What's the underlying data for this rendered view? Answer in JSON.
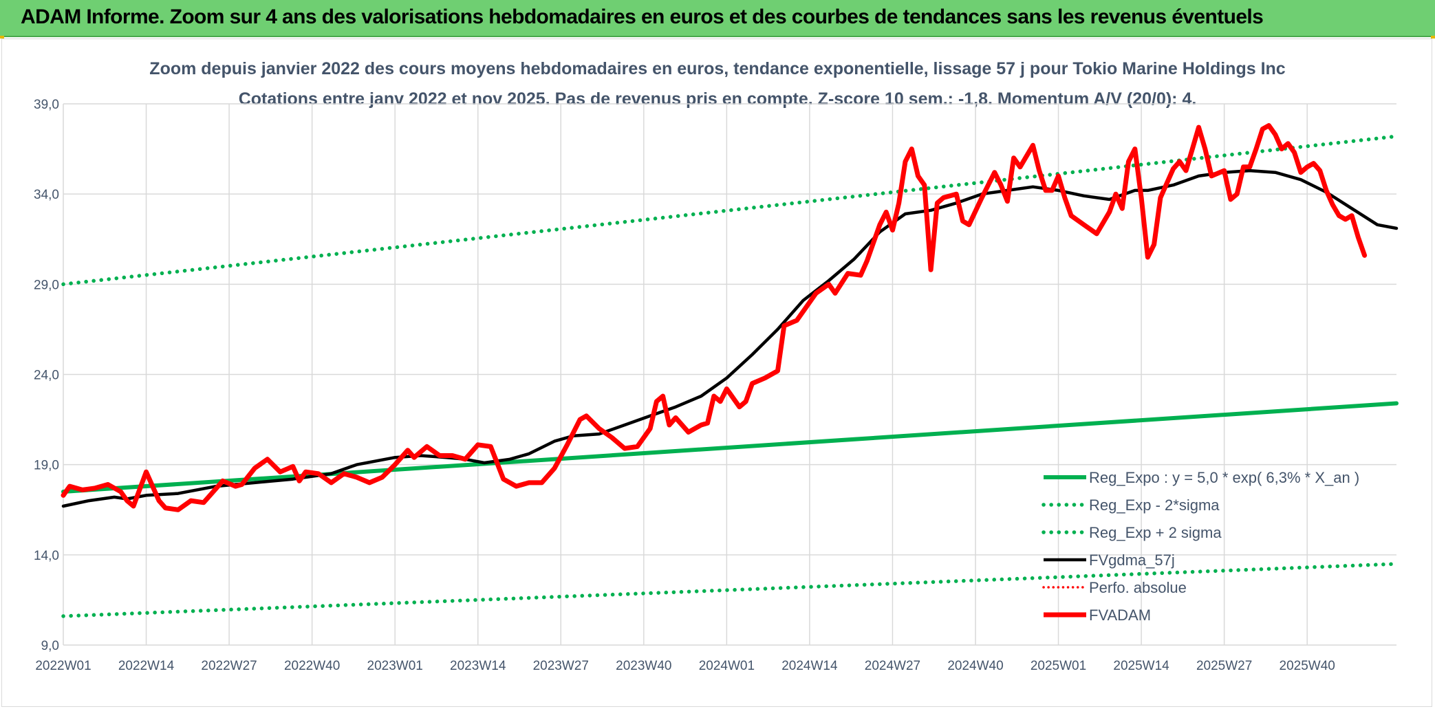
{
  "header": {
    "title": "ADAM Informe. Zoom sur 4 ans des valorisations hebdomadaires en euros et des courbes de tendances sans les revenus éventuels"
  },
  "colors": {
    "banner": "#6fcf72",
    "regression": "#00b050",
    "smoothing": "#000000",
    "price": "#ff0000",
    "perfo": "#ff0000",
    "grid": "#d9d9d9",
    "axis_text": "#44546a"
  },
  "chart_data": {
    "type": "line",
    "title": "Zoom depuis janvier 2022 des cours moyens hebdomadaires en euros, tendance exponentielle, lissage 57 j pour Tokio Marine Holdings Inc",
    "subtitle": "Cotations entre janv 2022 et nov 2025. Pas de revenus pris en compte. Z-score 10 sem.: -1,8. Momentum A/V (20/0): 4.",
    "xlabel": "",
    "ylabel": "",
    "ylim": [
      9,
      39
    ],
    "yticks": [
      "9,0",
      "14,0",
      "19,0",
      "24,0",
      "29,0",
      "34,0",
      "39,0"
    ],
    "ytick_values": [
      9,
      14,
      19,
      24,
      29,
      34,
      39
    ],
    "x_tick_labels": [
      "2022W01",
      "2022W14",
      "2022W27",
      "2022W40",
      "2023W01",
      "2023W14",
      "2023W27",
      "2023W40",
      "2024W01",
      "2024W14",
      "2024W27",
      "2024W40",
      "2025W01",
      "2025W14",
      "2025W27",
      "2025W40"
    ],
    "x_tick_weeks": [
      0,
      13,
      26,
      39,
      52,
      65,
      78,
      91,
      104,
      117,
      130,
      143,
      156,
      169,
      182,
      195
    ],
    "x_total_weeks": 209,
    "grid": true,
    "legend_position": "bottom-right",
    "series": [
      {
        "name": "Reg_Expo : y = 5,0 * exp( 6,3% *  X_an )",
        "style": "solid",
        "color": "#00b050",
        "points": [
          [
            0,
            17.5
          ],
          [
            209,
            22.4
          ]
        ]
      },
      {
        "name": "Reg_Exp - 2*sigma",
        "style": "dotted",
        "color": "#00b050",
        "points": [
          [
            0,
            10.6
          ],
          [
            209,
            13.5
          ]
        ]
      },
      {
        "name": "Reg_Exp + 2 sigma",
        "style": "dotted",
        "color": "#00b050",
        "points": [
          [
            0,
            29.0
          ],
          [
            209,
            37.2
          ]
        ]
      },
      {
        "name": "FVgdma_57j",
        "style": "solid",
        "color": "#000000",
        "points": [
          [
            0,
            16.7
          ],
          [
            4,
            17.0
          ],
          [
            8,
            17.2
          ],
          [
            10,
            17.1
          ],
          [
            13,
            17.3
          ],
          [
            18,
            17.4
          ],
          [
            24,
            17.8
          ],
          [
            30,
            18.0
          ],
          [
            36,
            18.2
          ],
          [
            42,
            18.5
          ],
          [
            46,
            19.0
          ],
          [
            52,
            19.4
          ],
          [
            56,
            19.5
          ],
          [
            60,
            19.4
          ],
          [
            63,
            19.3
          ],
          [
            66,
            19.1
          ],
          [
            70,
            19.3
          ],
          [
            73,
            19.6
          ],
          [
            77,
            20.3
          ],
          [
            80,
            20.6
          ],
          [
            84,
            20.7
          ],
          [
            88,
            21.2
          ],
          [
            92,
            21.7
          ],
          [
            96,
            22.2
          ],
          [
            100,
            22.8
          ],
          [
            104,
            23.8
          ],
          [
            108,
            25.1
          ],
          [
            112,
            26.5
          ],
          [
            116,
            28.1
          ],
          [
            120,
            29.2
          ],
          [
            124,
            30.4
          ],
          [
            128,
            31.9
          ],
          [
            132,
            32.9
          ],
          [
            136,
            33.1
          ],
          [
            140,
            33.5
          ],
          [
            144,
            34.0
          ],
          [
            148,
            34.2
          ],
          [
            152,
            34.4
          ],
          [
            156,
            34.2
          ],
          [
            160,
            33.9
          ],
          [
            164,
            33.7
          ],
          [
            168,
            34.2
          ],
          [
            170,
            34.2
          ],
          [
            174,
            34.5
          ],
          [
            178,
            35.0
          ],
          [
            182,
            35.2
          ],
          [
            186,
            35.3
          ],
          [
            190,
            35.2
          ],
          [
            194,
            34.8
          ],
          [
            198,
            34.1
          ],
          [
            202,
            33.2
          ],
          [
            206,
            32.3
          ],
          [
            209,
            32.1
          ]
        ]
      },
      {
        "name": "Perfo. absolue",
        "style": "dotted",
        "color": "#ff0000",
        "points": []
      },
      {
        "name": "FVADAM",
        "style": "solid",
        "color": "#ff0000",
        "points": [
          [
            0,
            17.3
          ],
          [
            1,
            17.8
          ],
          [
            3,
            17.6
          ],
          [
            5,
            17.7
          ],
          [
            7,
            17.9
          ],
          [
            9,
            17.5
          ],
          [
            10,
            17.0
          ],
          [
            11,
            16.7
          ],
          [
            13,
            18.6
          ],
          [
            15,
            17.0
          ],
          [
            16,
            16.6
          ],
          [
            18,
            16.5
          ],
          [
            20,
            17.0
          ],
          [
            22,
            16.9
          ],
          [
            23,
            17.3
          ],
          [
            25,
            18.1
          ],
          [
            27,
            17.8
          ],
          [
            28,
            17.9
          ],
          [
            30,
            18.8
          ],
          [
            32,
            19.3
          ],
          [
            34,
            18.6
          ],
          [
            36,
            18.9
          ],
          [
            37,
            18.1
          ],
          [
            38,
            18.6
          ],
          [
            40,
            18.5
          ],
          [
            42,
            18.0
          ],
          [
            44,
            18.5
          ],
          [
            46,
            18.3
          ],
          [
            48,
            18.0
          ],
          [
            50,
            18.3
          ],
          [
            52,
            19.0
          ],
          [
            54,
            19.8
          ],
          [
            55,
            19.4
          ],
          [
            57,
            20.0
          ],
          [
            59,
            19.5
          ],
          [
            61,
            19.5
          ],
          [
            63,
            19.3
          ],
          [
            65,
            20.1
          ],
          [
            67,
            20.0
          ],
          [
            69,
            18.2
          ],
          [
            71,
            17.8
          ],
          [
            73,
            18.0
          ],
          [
            75,
            18.0
          ],
          [
            77,
            18.8
          ],
          [
            79,
            20.1
          ],
          [
            81,
            21.5
          ],
          [
            82,
            21.7
          ],
          [
            84,
            21.0
          ],
          [
            86,
            20.5
          ],
          [
            88,
            19.9
          ],
          [
            90,
            20.0
          ],
          [
            92,
            21.0
          ],
          [
            93,
            22.5
          ],
          [
            94,
            22.8
          ],
          [
            95,
            21.2
          ],
          [
            96,
            21.6
          ],
          [
            98,
            20.8
          ],
          [
            100,
            21.2
          ],
          [
            101,
            21.3
          ],
          [
            102,
            22.8
          ],
          [
            103,
            22.5
          ],
          [
            104,
            23.2
          ],
          [
            106,
            22.2
          ],
          [
            107,
            22.5
          ],
          [
            108,
            23.5
          ],
          [
            110,
            23.8
          ],
          [
            112,
            24.2
          ],
          [
            113,
            26.7
          ],
          [
            115,
            27.0
          ],
          [
            116,
            27.5
          ],
          [
            118,
            28.5
          ],
          [
            120,
            29.0
          ],
          [
            121,
            28.5
          ],
          [
            123,
            29.6
          ],
          [
            125,
            29.5
          ],
          [
            126,
            30.3
          ],
          [
            128,
            32.3
          ],
          [
            129,
            33.0
          ],
          [
            130,
            32.0
          ],
          [
            131,
            33.5
          ],
          [
            132,
            35.8
          ],
          [
            133,
            36.5
          ],
          [
            134,
            35.0
          ],
          [
            135,
            34.5
          ],
          [
            136,
            29.8
          ],
          [
            137,
            33.5
          ],
          [
            138,
            33.8
          ],
          [
            140,
            34.0
          ],
          [
            141,
            32.5
          ],
          [
            142,
            32.3
          ],
          [
            144,
            33.8
          ],
          [
            146,
            35.2
          ],
          [
            147,
            34.5
          ],
          [
            148,
            33.6
          ],
          [
            149,
            36.0
          ],
          [
            150,
            35.5
          ],
          [
            152,
            36.7
          ],
          [
            153,
            35.3
          ],
          [
            154,
            34.2
          ],
          [
            155,
            34.2
          ],
          [
            156,
            35.0
          ],
          [
            157,
            33.8
          ],
          [
            158,
            32.8
          ],
          [
            160,
            32.3
          ],
          [
            162,
            31.8
          ],
          [
            164,
            33.0
          ],
          [
            165,
            34.0
          ],
          [
            166,
            33.2
          ],
          [
            167,
            35.8
          ],
          [
            168,
            36.5
          ],
          [
            169,
            33.8
          ],
          [
            170,
            30.5
          ],
          [
            171,
            31.2
          ],
          [
            172,
            33.8
          ],
          [
            174,
            35.4
          ],
          [
            175,
            35.8
          ],
          [
            176,
            35.3
          ],
          [
            177,
            36.5
          ],
          [
            178,
            37.7
          ],
          [
            179,
            36.5
          ],
          [
            180,
            35.0
          ],
          [
            182,
            35.3
          ],
          [
            183,
            33.7
          ],
          [
            184,
            34.0
          ],
          [
            185,
            35.5
          ],
          [
            186,
            35.5
          ],
          [
            187,
            36.5
          ],
          [
            188,
            37.6
          ],
          [
            189,
            37.8
          ],
          [
            190,
            37.3
          ],
          [
            191,
            36.5
          ],
          [
            192,
            36.8
          ],
          [
            193,
            36.3
          ],
          [
            194,
            35.2
          ],
          [
            195,
            35.5
          ],
          [
            196,
            35.7
          ],
          [
            197,
            35.3
          ],
          [
            198,
            34.2
          ],
          [
            199,
            33.4
          ],
          [
            200,
            32.8
          ],
          [
            201,
            32.6
          ],
          [
            202,
            32.8
          ],
          [
            203,
            31.6
          ],
          [
            204,
            30.6
          ]
        ]
      }
    ]
  }
}
